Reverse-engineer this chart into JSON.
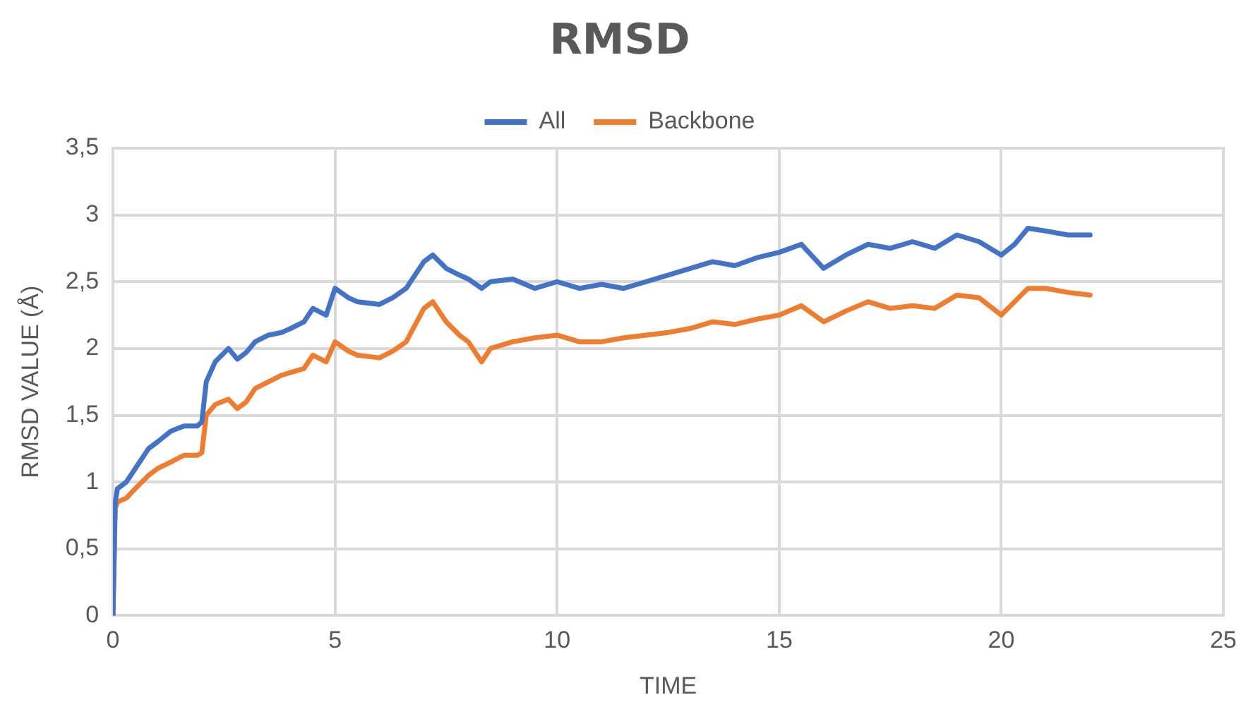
{
  "chart_data": {
    "type": "line",
    "title": "RMSD",
    "xlabel": "TIME",
    "ylabel": "RMSD VALUE (Å)",
    "xlim": [
      0,
      25
    ],
    "xticks": [
      0,
      5,
      10,
      15,
      20,
      25
    ],
    "ylim": [
      0,
      3.5
    ],
    "yticks": [
      0,
      {
        "value": 0.5,
        "label": "0,5"
      },
      1,
      {
        "value": 1.5,
        "label": "1,5"
      },
      2,
      {
        "value": 2.5,
        "label": "2,5"
      },
      3,
      {
        "value": 3.5,
        "label": "3,5"
      }
    ],
    "grid": true,
    "legend": "top",
    "marker": "none",
    "line_style": "solid",
    "series": [
      {
        "name": "All",
        "color": "#4472c4",
        "x": [
          0,
          0.05,
          0.1,
          0.3,
          0.5,
          0.8,
          1,
          1.3,
          1.6,
          1.9,
          2,
          2.1,
          2.3,
          2.6,
          2.8,
          3,
          3.2,
          3.5,
          3.8,
          4,
          4.3,
          4.5,
          4.8,
          5,
          5.3,
          5.5,
          6,
          6.3,
          6.6,
          7,
          7.2,
          7.5,
          7.8,
          8,
          8.3,
          8.5,
          9,
          9.5,
          10,
          10.5,
          11,
          11.5,
          12,
          12.5,
          13,
          13.5,
          14,
          14.5,
          15,
          15.5,
          16,
          16.5,
          17,
          17.5,
          18,
          18.5,
          19,
          19.5,
          20,
          20.3,
          20.6,
          21,
          21.5,
          22
        ],
        "values": [
          0,
          0.85,
          0.95,
          1.0,
          1.1,
          1.25,
          1.3,
          1.38,
          1.42,
          1.42,
          1.45,
          1.75,
          1.9,
          2.0,
          1.92,
          1.97,
          2.05,
          2.1,
          2.12,
          2.15,
          2.2,
          2.3,
          2.25,
          2.45,
          2.38,
          2.35,
          2.33,
          2.38,
          2.45,
          2.65,
          2.7,
          2.6,
          2.55,
          2.52,
          2.45,
          2.5,
          2.52,
          2.45,
          2.5,
          2.45,
          2.48,
          2.45,
          2.5,
          2.55,
          2.6,
          2.65,
          2.62,
          2.68,
          2.72,
          2.78,
          2.6,
          2.7,
          2.78,
          2.75,
          2.8,
          2.75,
          2.85,
          2.8,
          2.7,
          2.78,
          2.9,
          2.88,
          2.85,
          2.85
        ]
      },
      {
        "name": "Backbone",
        "color": "#ed7d31",
        "x": [
          0,
          0.05,
          0.1,
          0.3,
          0.5,
          0.8,
          1,
          1.3,
          1.6,
          1.9,
          2,
          2.1,
          2.3,
          2.6,
          2.8,
          3,
          3.2,
          3.5,
          3.8,
          4,
          4.3,
          4.5,
          4.8,
          5,
          5.3,
          5.5,
          6,
          6.3,
          6.6,
          7,
          7.2,
          7.5,
          7.8,
          8,
          8.3,
          8.5,
          9,
          9.5,
          10,
          10.5,
          11,
          11.5,
          12,
          12.5,
          13,
          13.5,
          14,
          14.5,
          15,
          15.5,
          16,
          16.5,
          17,
          17.5,
          18,
          18.5,
          19,
          19.5,
          20,
          20.3,
          20.6,
          21,
          21.5,
          22
        ],
        "values": [
          0,
          0.8,
          0.85,
          0.88,
          0.95,
          1.05,
          1.1,
          1.15,
          1.2,
          1.2,
          1.22,
          1.5,
          1.58,
          1.62,
          1.55,
          1.6,
          1.7,
          1.75,
          1.8,
          1.82,
          1.85,
          1.95,
          1.9,
          2.05,
          1.98,
          1.95,
          1.93,
          1.98,
          2.05,
          2.3,
          2.35,
          2.2,
          2.1,
          2.05,
          1.9,
          2.0,
          2.05,
          2.08,
          2.1,
          2.05,
          2.05,
          2.08,
          2.1,
          2.12,
          2.15,
          2.2,
          2.18,
          2.22,
          2.25,
          2.32,
          2.2,
          2.28,
          2.35,
          2.3,
          2.32,
          2.3,
          2.4,
          2.38,
          2.25,
          2.35,
          2.45,
          2.45,
          2.42,
          2.4
        ]
      }
    ]
  }
}
